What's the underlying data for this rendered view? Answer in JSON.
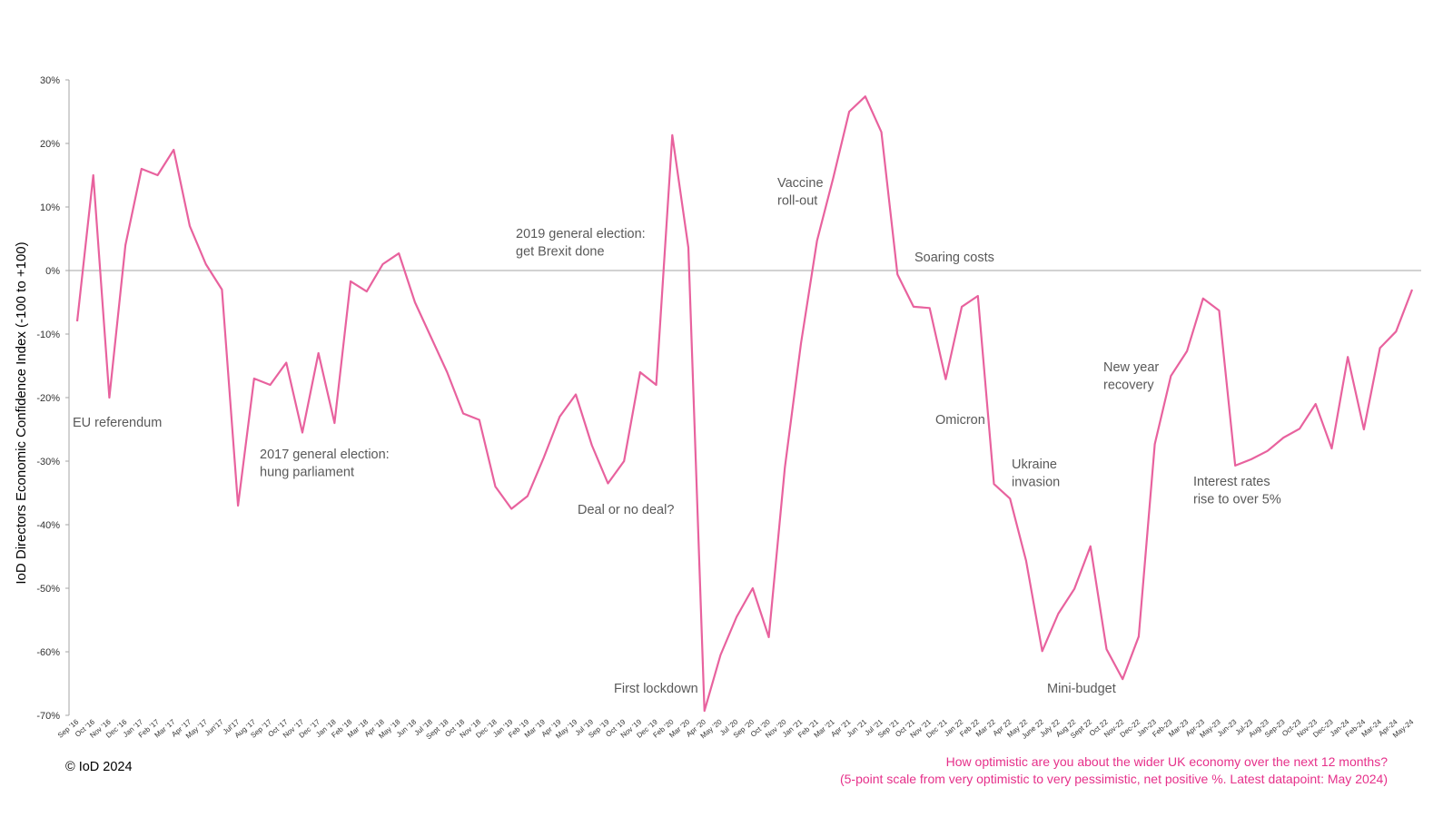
{
  "chart_data": {
    "type": "line",
    "y_label": "IoD Directors Economic Confidence Index (-100 to +100)",
    "categories": [
      "Sep '16",
      "Oct '16",
      "Nov '16",
      "Dec '16",
      "Jan '17",
      "Feb '17",
      "Mar '17",
      "Apr '17",
      "May '17",
      "Jun'17",
      "Jul'17",
      "Aug '17",
      "Sep '17",
      "Oct '17",
      "Nov '17",
      "Dec '17",
      "Jan '18",
      "Feb '18",
      "Mar '18",
      "Apr '18",
      "May '18",
      "Jun '18",
      "Jul '18",
      "Sept '18",
      "Oct '18",
      "Nov '18",
      "Dec '18",
      "Jan '19",
      "Feb '19",
      "Mar '19",
      "Apr '19",
      "May '19",
      "Jul '19",
      "Sep '19",
      "Oct '19",
      "Nov '19",
      "Dec '19",
      "Feb '20",
      "Mar '20",
      "Apr '20",
      "May '20",
      "Jul '20",
      "Sep '20",
      "Oct '20",
      "Nov '20",
      "Jan '21",
      "Feb '21",
      "Mar '21",
      "Apr '21",
      "Jun '21",
      "Jul '21",
      "Sep '21",
      "Oct '21",
      "Nov '21",
      "Dec '21",
      "Jan 22",
      "Feb 22",
      "Mar 22",
      "Apr 22",
      "May 22",
      "June 22",
      "July 22",
      "Aug 22",
      "Sept 22",
      "Oct 22",
      "Nov-22",
      "Dec-22",
      "Jan-23",
      "Feb-23",
      "Mar-23",
      "Apr-23",
      "May-23",
      "Jun-23",
      "Jul-23",
      "Aug-23",
      "Sep-23",
      "Oct-23",
      "Nov-23",
      "Dec-23",
      "Jan-24",
      "Feb-24",
      "Mar-24",
      "Apr-24",
      "May-24"
    ],
    "series": [
      {
        "name": "IoD Directors Economic Confidence Index",
        "color": "#e8629e",
        "values": [
          -8,
          15,
          -20,
          4,
          16,
          15,
          19,
          7,
          1,
          -3,
          -37,
          -17,
          -18,
          -14.5,
          -25.5,
          -13,
          -24,
          -1.7,
          -3.3,
          1,
          2.7,
          -5,
          -10.5,
          -16,
          -22.5,
          -23.5,
          -34,
          -37.5,
          -35.5,
          -29.5,
          -23,
          -19.5,
          -27.5,
          -33.5,
          -30,
          -16,
          -18,
          21.3,
          3.6,
          -69.3,
          -60.5,
          -54.5,
          -50,
          -57.7,
          -31,
          -11.5,
          4.7,
          14.5,
          25,
          27.4,
          21.8,
          -0.6,
          -5.7,
          -5.9,
          -17.1,
          -5.7,
          -4,
          -33.6,
          -35.9,
          -45.7,
          -59.9,
          -54,
          -50.1,
          -43.4,
          -59.6,
          -64.3,
          -57.6,
          -27.3,
          -16.6,
          -12.7,
          -4.4,
          -6.3,
          -30.7,
          -29.7,
          -28.4,
          -26.3,
          -24.9,
          -21,
          -28,
          -13.6,
          -25,
          -12.2,
          -9.6,
          -3
        ]
      }
    ],
    "ylim": [
      -70,
      30
    ],
    "yticks": [
      {
        "value": -70,
        "label": "-70%"
      },
      {
        "value": -60,
        "label": "-60%"
      },
      {
        "value": -50,
        "label": "-50%"
      },
      {
        "value": -40,
        "label": "-40%"
      },
      {
        "value": -30,
        "label": "-30%"
      },
      {
        "value": -20,
        "label": "-20%"
      },
      {
        "value": -10,
        "label": "-10%"
      },
      {
        "value": 0,
        "label": "0%"
      },
      {
        "value": 10,
        "label": "10%"
      },
      {
        "value": 20,
        "label": "20%"
      },
      {
        "value": 30,
        "label": "30%"
      }
    ],
    "annotations": [
      [
        "EU referendum"
      ],
      [
        "2017 general election:",
        "hung parliament"
      ],
      [
        "2019 general election:",
        "get Brexit done"
      ],
      [
        "Deal or no deal?"
      ],
      [
        "First lockdown"
      ],
      [
        "Vaccine",
        "roll-out"
      ],
      [
        "Soaring costs"
      ],
      [
        "Omicron"
      ],
      [
        "Ukraine",
        "invasion"
      ],
      [
        "Mini-budget"
      ],
      [
        "New year",
        "recovery"
      ],
      [
        "Interest rates",
        "rise to over 5%"
      ]
    ],
    "copyright": "© IoD 2024",
    "note": [
      "How optimistic are you about the wider UK economy over the next 12 months?",
      "(5-point scale from very optimistic to very pessimistic, net positive %. Latest datapoint: May 2024)"
    ]
  }
}
